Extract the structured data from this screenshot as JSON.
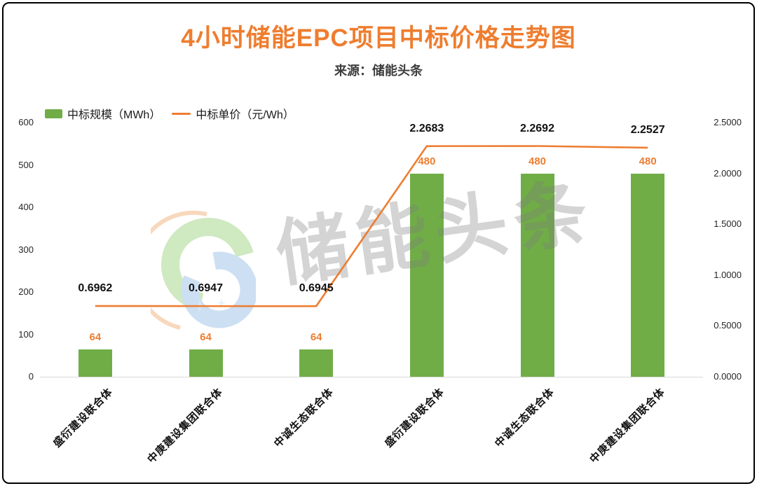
{
  "title": "4小时储能EPC项目中标价格走势图",
  "subtitle": "来源：储能头条",
  "watermark": {
    "text": "储能头条"
  },
  "colors": {
    "title": "#EE7D2F",
    "bar": "#70AD47",
    "line": "#ED7D31",
    "axis_text": "#262626",
    "baseline": "#D9D9D9"
  },
  "legend": [
    {
      "label": "中标规模（MWh）",
      "type": "bar",
      "color": "#70AD47"
    },
    {
      "label": "中标单价（元/Wh）",
      "type": "line",
      "color": "#ED7D31"
    }
  ],
  "chart_data": {
    "type": "bar+line",
    "title": "4小时储能EPC项目中标价格走势图",
    "subtitle": "来源：储能头条",
    "categories": [
      "盛衍建设联合体",
      "中庚建设集团联合体",
      "中诚生态联合体",
      "盛衍建设联合体",
      "中诚生态联合体",
      "中庚建设集团联合体"
    ],
    "series": [
      {
        "name": "中标规模（MWh）",
        "type": "bar",
        "axis": "left",
        "color": "#70AD47",
        "values": [
          64,
          64,
          64,
          480,
          480,
          480
        ],
        "labels": [
          "64",
          "64",
          "64",
          "480",
          "480",
          "480"
        ]
      },
      {
        "name": "中标单价（元/Wh）",
        "type": "line",
        "axis": "right",
        "color": "#ED7D31",
        "values": [
          0.6962,
          0.6947,
          0.6945,
          2.2683,
          2.2692,
          2.2527
        ],
        "labels": [
          "0.6962",
          "0.6947",
          "0.6945",
          "2.2683",
          "2.2692",
          "2.2527"
        ]
      }
    ],
    "left_axis": {
      "min": 0,
      "max": 600,
      "ticks": [
        "0",
        "100",
        "200",
        "300",
        "400",
        "500",
        "600"
      ]
    },
    "right_axis": {
      "min": 0,
      "max": 2.5,
      "ticks": [
        "0.0000",
        "0.5000",
        "1.0000",
        "1.5000",
        "2.0000",
        "2.5000"
      ]
    },
    "grid": false,
    "legend_position": "top-left"
  }
}
